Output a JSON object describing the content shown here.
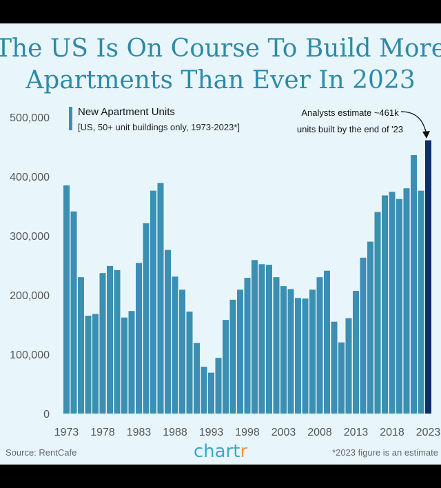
{
  "chart_data": {
    "type": "bar",
    "title_lines": [
      "The US Is On Course To Build More",
      "Apartments Than Ever In 2023"
    ],
    "legend": {
      "title": "New Apartment Units",
      "subtitle": "[US, 50+ unit buildings only, 1973-2023*]"
    },
    "annotation_lines": [
      "Analysts estimate ~461k",
      "units built by the end of '23"
    ],
    "ylim": [
      0,
      500000
    ],
    "y_ticks": [
      "0",
      "100,000",
      "200,000",
      "300,000",
      "400,000",
      "500,000"
    ],
    "x_ticks": [
      "1973",
      "1978",
      "1983",
      "1988",
      "1993",
      "1998",
      "2003",
      "2008",
      "2013",
      "2018",
      "2023"
    ],
    "categories": [
      "1973",
      "1974",
      "1975",
      "1976",
      "1977",
      "1978",
      "1979",
      "1980",
      "1981",
      "1982",
      "1983",
      "1984",
      "1985",
      "1986",
      "1987",
      "1988",
      "1989",
      "1990",
      "1991",
      "1992",
      "1993",
      "1994",
      "1995",
      "1996",
      "1997",
      "1998",
      "1999",
      "2000",
      "2001",
      "2002",
      "2003",
      "2004",
      "2005",
      "2006",
      "2007",
      "2008",
      "2009",
      "2010",
      "2011",
      "2012",
      "2013",
      "2014",
      "2015",
      "2016",
      "2017",
      "2018",
      "2019",
      "2020",
      "2021",
      "2022",
      "2023"
    ],
    "values": [
      385000,
      341000,
      230000,
      165000,
      168000,
      237000,
      249000,
      242000,
      162000,
      173000,
      254000,
      321000,
      376000,
      389000,
      276000,
      231000,
      209000,
      172000,
      119000,
      79000,
      69000,
      94000,
      158000,
      192000,
      209000,
      229000,
      259000,
      252000,
      251000,
      230000,
      215000,
      210000,
      195000,
      194000,
      209000,
      230000,
      241000,
      155000,
      120000,
      161000,
      207000,
      263000,
      290000,
      340000,
      368000,
      374000,
      362000,
      380000,
      436000,
      376000,
      461000
    ],
    "highlight_index": 50,
    "colors": {
      "bar": "#3a8fb2",
      "highlight": "#0e2e66",
      "title": "#2e8aa8",
      "background": "#e8f6fb"
    },
    "grid": false
  },
  "footer": {
    "source": "Source: RentCafe",
    "brand_main": "chart",
    "brand_accent": "r",
    "note": "*2023 figure is an estimate"
  }
}
